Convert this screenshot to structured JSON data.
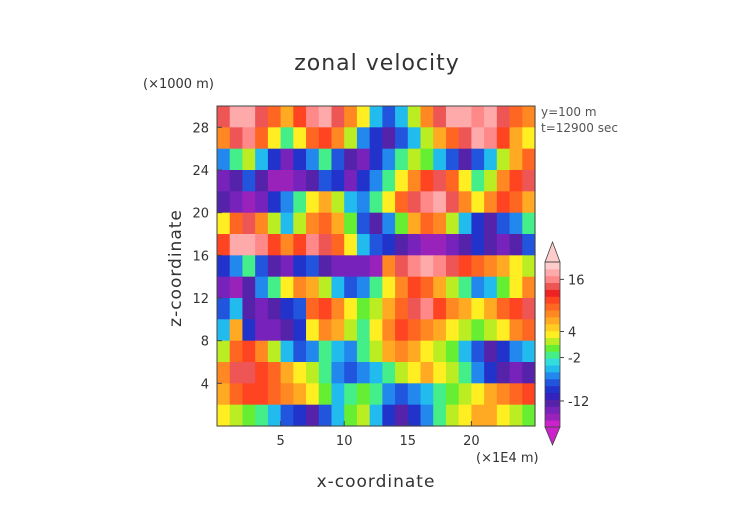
{
  "chart_data": {
    "type": "heatmap",
    "title": "zonal velocity",
    "xlabel": "x-coordinate",
    "ylabel": "z-coordinate",
    "x_unit_label": "(×1E4 m)",
    "y_unit_label": "(×1000 m)",
    "annotations": [
      "y=100 m",
      "t=12900 sec"
    ],
    "xlim": [
      0,
      25
    ],
    "ylim": [
      0,
      30
    ],
    "x_ticks": [
      5,
      10,
      15,
      20
    ],
    "y_ticks": [
      4,
      8,
      12,
      16,
      20,
      24,
      28
    ],
    "colorbar": {
      "tick_labels": [
        16,
        4,
        -2,
        -12
      ],
      "range": [
        -18,
        20
      ],
      "arrows": "both",
      "colors": [
        "#cc22cc",
        "#9922bb",
        "#7722bb",
        "#5522aa",
        "#3322bb",
        "#2233cc",
        "#2255dd",
        "#2288ee",
        "#22bbee",
        "#33dddd",
        "#44ee88",
        "#66ee33",
        "#bbee22",
        "#ffee22",
        "#ffcc22",
        "#ffaa22",
        "#ff8822",
        "#ff6622",
        "#ff4422",
        "#ee2222",
        "#ee5555",
        "#ff8888",
        "#ffaaaa",
        "#ffcccc"
      ]
    },
    "field_rows_description": "rows from top (z=30) to bottom (z=0), values in m/s",
    "field": [
      [
        14,
        18,
        18,
        14,
        10,
        6,
        12,
        16,
        18,
        14,
        8,
        4,
        -4,
        -8,
        -4,
        2,
        8,
        14,
        18,
        18,
        16,
        18,
        14,
        10,
        8
      ],
      [
        8,
        14,
        16,
        10,
        4,
        -2,
        4,
        10,
        12,
        8,
        2,
        -6,
        -10,
        -12,
        -8,
        -4,
        2,
        6,
        10,
        14,
        18,
        16,
        12,
        6,
        4
      ],
      [
        -6,
        -2,
        2,
        -4,
        -10,
        -14,
        -10,
        -6,
        -2,
        -8,
        -12,
        -14,
        -10,
        -6,
        -2,
        2,
        0,
        -4,
        -8,
        -12,
        -8,
        -4,
        2,
        6,
        10
      ],
      [
        -14,
        -12,
        -8,
        -12,
        -16,
        -16,
        -14,
        -12,
        -8,
        -10,
        -14,
        -10,
        -6,
        -2,
        4,
        8,
        12,
        14,
        10,
        4,
        -2,
        2,
        8,
        12,
        14
      ],
      [
        -12,
        -14,
        -16,
        -14,
        -10,
        -6,
        -2,
        4,
        6,
        2,
        -4,
        -6,
        -2,
        4,
        10,
        14,
        16,
        18,
        14,
        8,
        4,
        8,
        12,
        10,
        6
      ],
      [
        4,
        10,
        14,
        8,
        2,
        -4,
        2,
        8,
        10,
        6,
        0,
        -8,
        -12,
        -6,
        0,
        6,
        10,
        8,
        2,
        -4,
        -10,
        -12,
        -8,
        -6,
        -2
      ],
      [
        12,
        18,
        18,
        16,
        12,
        8,
        12,
        16,
        14,
        10,
        4,
        -4,
        -8,
        -10,
        -12,
        -14,
        -16,
        -16,
        -14,
        -12,
        -10,
        -12,
        -14,
        -12,
        -8
      ],
      [
        -10,
        -6,
        -2,
        -8,
        -12,
        -14,
        -10,
        -8,
        -12,
        -14,
        -14,
        -14,
        -16,
        8,
        14,
        16,
        18,
        16,
        14,
        12,
        10,
        8,
        6,
        4,
        2
      ],
      [
        -14,
        -16,
        -12,
        -6,
        -2,
        4,
        8,
        6,
        2,
        -4,
        -8,
        -6,
        -2,
        4,
        8,
        12,
        10,
        6,
        2,
        -2,
        -6,
        -4,
        0,
        4,
        8
      ],
      [
        -8,
        -4,
        -12,
        -14,
        -12,
        -10,
        -8,
        10,
        12,
        8,
        4,
        0,
        2,
        6,
        10,
        14,
        16,
        12,
        8,
        6,
        4,
        6,
        10,
        12,
        14
      ],
      [
        -4,
        6,
        -10,
        -14,
        -14,
        -12,
        -10,
        4,
        8,
        6,
        2,
        -2,
        4,
        8,
        12,
        10,
        8,
        6,
        4,
        2,
        0,
        2,
        4,
        8,
        10
      ],
      [
        2,
        10,
        12,
        8,
        2,
        -4,
        -8,
        -6,
        -2,
        -4,
        -6,
        -2,
        2,
        6,
        8,
        6,
        4,
        2,
        0,
        -4,
        -8,
        -12,
        -10,
        -6,
        -4
      ],
      [
        8,
        14,
        14,
        12,
        10,
        6,
        4,
        2,
        -2,
        -6,
        -8,
        -6,
        -4,
        -2,
        2,
        4,
        6,
        4,
        2,
        -2,
        -6,
        -10,
        -12,
        -14,
        -12
      ],
      [
        6,
        10,
        12,
        12,
        10,
        8,
        6,
        4,
        0,
        -4,
        -2,
        0,
        -2,
        -6,
        -8,
        -6,
        -4,
        -2,
        0,
        2,
        4,
        6,
        8,
        10,
        12
      ],
      [
        4,
        2,
        0,
        -2,
        -4,
        -8,
        -10,
        -12,
        -8,
        -4,
        0,
        2,
        -4,
        -10,
        -12,
        -10,
        -6,
        -2,
        2,
        4,
        6,
        6,
        4,
        2,
        0
      ]
    ]
  }
}
